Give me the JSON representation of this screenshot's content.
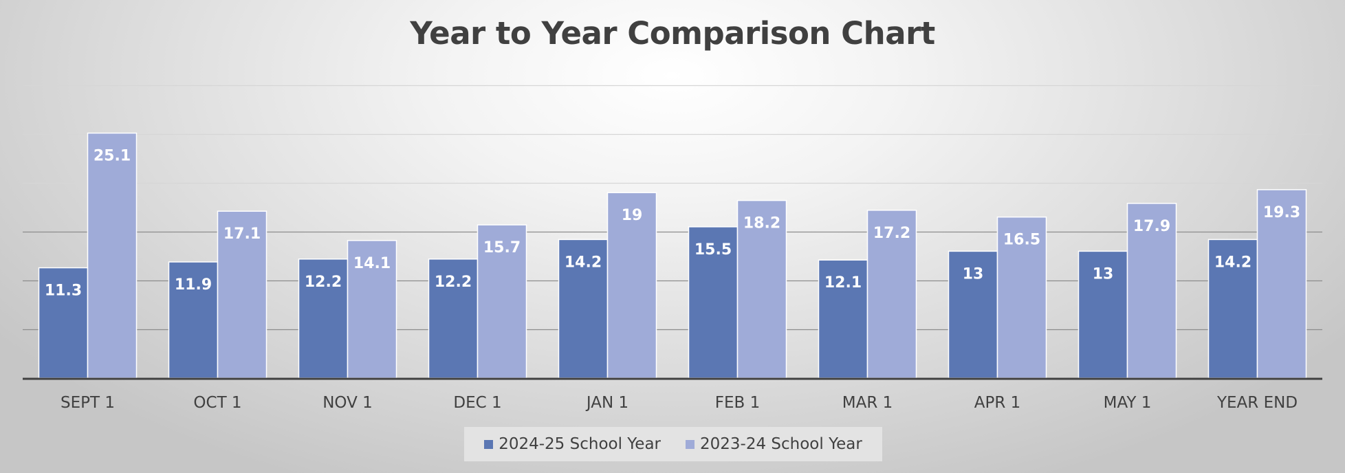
{
  "chart_data": {
    "type": "bar",
    "title": "Year to Year Comparison Chart",
    "categories": [
      "SEPT 1",
      "OCT 1",
      "NOV 1",
      "DEC 1",
      "JAN 1",
      "FEB 1",
      "MAR 1",
      "APR 1",
      "MAY 1",
      "YEAR END"
    ],
    "series": [
      {
        "name": "2024-25 School Year",
        "color": "#5b77b3",
        "values": [
          11.3,
          11.9,
          12.2,
          12.2,
          14.2,
          15.5,
          12.1,
          13,
          13,
          14.2
        ]
      },
      {
        "name": "2023-24 School Year",
        "color": "#9fabd8",
        "values": [
          25.1,
          17.1,
          14.1,
          15.7,
          19,
          18.2,
          17.2,
          16.5,
          17.9,
          19.3
        ]
      }
    ],
    "ylim": [
      0,
      30
    ],
    "y_gridline_step": 5,
    "y_tick_labels_shown": false,
    "data_labels": true,
    "grid": true,
    "legend_position": "bottom",
    "xlabel": "",
    "ylabel": ""
  }
}
